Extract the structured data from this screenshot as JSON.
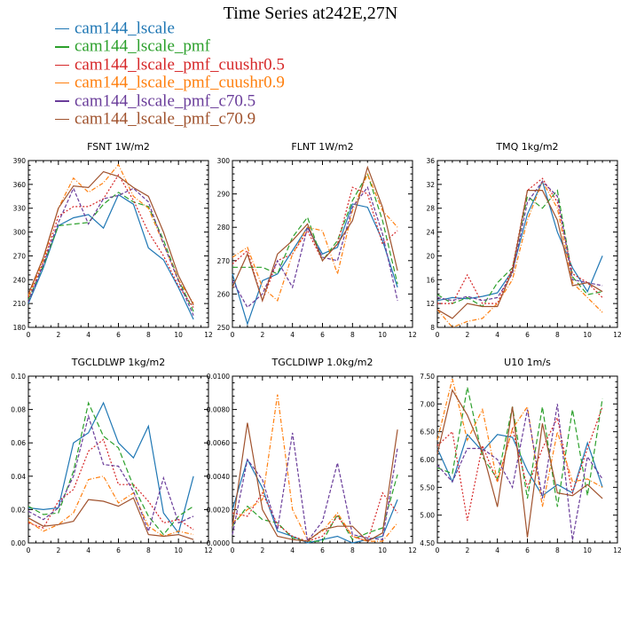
{
  "page": {
    "title": "Time Series at242E,27N"
  },
  "legend": [
    {
      "label": "cam144_lscale",
      "color": "#1f77b4"
    },
    {
      "label": "cam144_lscale_pmf",
      "color": "#2ca02c"
    },
    {
      "label": "cam144_lscale_pmf_cuushr0.5",
      "color": "#d62728"
    },
    {
      "label": "cam144_lscale_pmf_cuushr0.9",
      "color": "#ff7f0e"
    },
    {
      "label": "cam144_lscale_pmf_c70.5",
      "color": "#6a3d9a"
    },
    {
      "label": "cam144_lscale_pmf_c70.9",
      "color": "#a0522d"
    }
  ],
  "chart_data": [
    {
      "type": "line",
      "title": "FSNT   1W/m2",
      "x": [
        0,
        1,
        2,
        3,
        4,
        5,
        6,
        7,
        8,
        9,
        10,
        11
      ],
      "xlim": [
        0,
        12
      ],
      "xticks": [
        0,
        2,
        4,
        6,
        8,
        10,
        12
      ],
      "ylim": [
        180,
        390
      ],
      "yticks": [
        "180",
        "210",
        "240",
        "270",
        "300",
        "330",
        "360",
        "390"
      ],
      "series": [
        {
          "name": "cam144_lscale",
          "values": [
            210,
            255,
            308,
            318,
            322,
            305,
            347,
            335,
            280,
            265,
            230,
            190
          ]
        },
        {
          "name": "cam144_lscale_pmf",
          "values": [
            215,
            258,
            308,
            310,
            312,
            335,
            350,
            338,
            332,
            290,
            240,
            200
          ]
        },
        {
          "name": "cam144_lscale_pmf_cuushr0.5",
          "values": [
            218,
            262,
            320,
            332,
            332,
            342,
            372,
            340,
            300,
            270,
            232,
            205
          ]
        },
        {
          "name": "cam144_lscale_pmf_cuushr0.9",
          "values": [
            220,
            265,
            330,
            368,
            350,
            362,
            385,
            345,
            330,
            285,
            240,
            210
          ]
        },
        {
          "name": "cam144_lscale_pmf_c70.5",
          "values": [
            212,
            260,
            312,
            355,
            310,
            342,
            346,
            355,
            338,
            285,
            238,
            195
          ]
        },
        {
          "name": "cam144_lscale_pmf_c70.9",
          "values": [
            222,
            268,
            330,
            358,
            356,
            376,
            370,
            356,
            345,
            300,
            245,
            208
          ]
        }
      ]
    },
    {
      "type": "line",
      "title": "FLNT   1W/m2",
      "x": [
        0,
        1,
        2,
        3,
        4,
        5,
        6,
        7,
        8,
        9,
        10,
        11
      ],
      "xlim": [
        0,
        12
      ],
      "xticks": [
        0,
        2,
        4,
        6,
        8,
        10,
        12
      ],
      "ylim": [
        250,
        300
      ],
      "yticks": [
        "250",
        "260",
        "270",
        "280",
        "290",
        "300"
      ],
      "series": [
        {
          "name": "cam144_lscale",
          "values": [
            266,
            251,
            264,
            266,
            273,
            280,
            272,
            274,
            287,
            286,
            276,
            262
          ]
        },
        {
          "name": "cam144_lscale_pmf",
          "values": [
            268,
            268,
            268,
            266,
            277,
            283,
            270,
            276,
            288,
            296,
            282,
            263
          ]
        },
        {
          "name": "cam144_lscale_pmf_cuushr0.5",
          "values": [
            269,
            273,
            258,
            270,
            272,
            279,
            270,
            275,
            292,
            290,
            275,
            279
          ]
        },
        {
          "name": "cam144_lscale_pmf_cuushr0.9",
          "values": [
            271,
            274,
            262,
            258,
            272,
            280,
            279,
            266,
            285,
            296,
            285,
            280
          ]
        },
        {
          "name": "cam144_lscale_pmf_c70.5",
          "values": [
            264,
            256,
            260,
            270,
            262,
            280,
            271,
            270,
            286,
            292,
            278,
            258
          ]
        },
        {
          "name": "cam144_lscale_pmf_c70.9",
          "values": [
            262,
            272,
            258,
            272,
            276,
            281,
            270,
            275,
            282,
            298,
            286,
            267
          ]
        }
      ]
    },
    {
      "type": "line",
      "title": "TMQ   1kg/m2",
      "x": [
        0,
        1,
        2,
        3,
        4,
        5,
        6,
        7,
        8,
        9,
        10,
        11
      ],
      "xlim": [
        0,
        12
      ],
      "xticks": [
        0,
        2,
        4,
        6,
        8,
        10,
        12
      ],
      "ylim": [
        8,
        36
      ],
      "yticks": [
        "8",
        "12",
        "16",
        "20",
        "24",
        "28",
        "32",
        "36"
      ],
      "series": [
        {
          "name": "cam144_lscale",
          "values": [
            12.5,
            13,
            12.8,
            13.2,
            13.8,
            17.5,
            27,
            32.5,
            24,
            18,
            14,
            20
          ]
        },
        {
          "name": "cam144_lscale_pmf",
          "values": [
            13.5,
            12,
            13,
            11.5,
            15.5,
            18,
            30,
            28,
            31,
            16.5,
            13.5,
            14
          ]
        },
        {
          "name": "cam144_lscale_pmf_cuushr0.5",
          "values": [
            12,
            12,
            16.8,
            12,
            12,
            18,
            31,
            33,
            29,
            17,
            15.5,
            13
          ]
        },
        {
          "name": "cam144_lscale_pmf_cuushr0.9",
          "values": [
            11,
            8,
            9,
            9.5,
            12,
            16,
            26,
            32.5,
            28,
            15.5,
            13,
            10.5
          ]
        },
        {
          "name": "cam144_lscale_pmf_c70.5",
          "values": [
            13,
            12.5,
            13.2,
            12.5,
            13,
            17,
            29,
            32.5,
            30,
            16,
            15.5,
            15
          ]
        },
        {
          "name": "cam144_lscale_pmf_c70.9",
          "values": [
            11,
            9.5,
            12,
            11.5,
            11.5,
            17.5,
            31,
            31,
            26,
            15,
            15.5,
            14
          ]
        }
      ]
    },
    {
      "type": "line",
      "title": "TGCLDLWP   1kg/m2",
      "x": [
        0,
        1,
        2,
        3,
        4,
        5,
        6,
        7,
        8,
        9,
        10,
        11
      ],
      "xlim": [
        0,
        12
      ],
      "xticks": [
        0,
        2,
        4,
        6,
        8,
        10,
        12
      ],
      "ylim": [
        0,
        0.1
      ],
      "yticks": [
        "0.00",
        "0.02",
        "0.04",
        "0.06",
        "0.08",
        "0.10"
      ],
      "series": [
        {
          "name": "cam144_lscale",
          "values": [
            0.021,
            0.02,
            0.021,
            0.06,
            0.066,
            0.084,
            0.06,
            0.051,
            0.07,
            0.018,
            0.006,
            0.04
          ]
        },
        {
          "name": "cam144_lscale_pmf",
          "values": [
            0.022,
            0.017,
            0.018,
            0.043,
            0.084,
            0.064,
            0.057,
            0.034,
            0.016,
            0.005,
            0.016,
            0.022
          ]
        },
        {
          "name": "cam144_lscale_pmf_cuushr0.5",
          "values": [
            0.012,
            0.009,
            0.025,
            0.032,
            0.055,
            0.062,
            0.035,
            0.035,
            0.025,
            0.012,
            0.014,
            0.008
          ]
        },
        {
          "name": "cam144_lscale_pmf_cuushr0.9",
          "values": [
            0.013,
            0.007,
            0.011,
            0.018,
            0.038,
            0.04,
            0.024,
            0.03,
            0.01,
            0.004,
            0.007,
            0.005
          ]
        },
        {
          "name": "cam144_lscale_pmf_c70.5",
          "values": [
            0.019,
            0.014,
            0.021,
            0.04,
            0.076,
            0.047,
            0.046,
            0.031,
            0.007,
            0.039,
            0.012,
            0.016
          ]
        },
        {
          "name": "cam144_lscale_pmf_c70.9",
          "values": [
            0.015,
            0.01,
            0.011,
            0.013,
            0.026,
            0.025,
            0.022,
            0.027,
            0.005,
            0.004,
            0.005,
            0.002
          ]
        }
      ]
    },
    {
      "type": "line",
      "title": "TGCLDIWP   1.0kg/m2",
      "x": [
        0,
        1,
        2,
        3,
        4,
        5,
        6,
        7,
        8,
        9,
        10,
        11
      ],
      "xlim": [
        0,
        12
      ],
      "xticks": [
        0,
        2,
        4,
        6,
        8,
        10,
        12
      ],
      "ylim": [
        0,
        0.01
      ],
      "yticks": [
        "0.0000",
        "0.0020",
        "0.0040",
        "0.0060",
        "0.0080",
        "0.0100"
      ],
      "series": [
        {
          "name": "cam144_lscale",
          "values": [
            0.002,
            0.005,
            0.0033,
            0.0007,
            0.0004,
            0.0,
            0.0002,
            0.0004,
            0.0,
            0.0002,
            0.0004,
            0.0026
          ]
        },
        {
          "name": "cam144_lscale_pmf",
          "values": [
            0.001,
            0.0022,
            0.0014,
            0.0012,
            0.0003,
            0.0001,
            0.0001,
            0.0017,
            0.0002,
            0.0006,
            0.0009,
            0.0041
          ]
        },
        {
          "name": "cam144_lscale_pmf_cuushr0.5",
          "values": [
            0.0018,
            0.0016,
            0.003,
            0.0011,
            0.0004,
            0.0001,
            0.0004,
            0.0016,
            0.0004,
            0.0001,
            0.003,
            0.0018
          ]
        },
        {
          "name": "cam144_lscale_pmf_cuushr0.9",
          "values": [
            0.0012,
            0.002,
            0.0026,
            0.0089,
            0.002,
            0.0002,
            0.0007,
            0.0018,
            0.0004,
            0.0001,
            0.0001,
            0.0012
          ]
        },
        {
          "name": "cam144_lscale_pmf_c70.5",
          "values": [
            0.0005,
            0.005,
            0.0038,
            0.0008,
            0.0066,
            0.0001,
            0.0013,
            0.0048,
            0.0005,
            0.0003,
            0.0002,
            0.0057
          ]
        },
        {
          "name": "cam144_lscale_pmf_c70.9",
          "values": [
            0.001,
            0.0072,
            0.002,
            0.0004,
            0.0002,
            0.0001,
            0.0008,
            0.001,
            0.001,
            0.0001,
            0.0006,
            0.0068
          ]
        }
      ]
    },
    {
      "type": "line",
      "title": "U10   1m/s",
      "x": [
        0,
        1,
        2,
        3,
        4,
        5,
        6,
        7,
        8,
        9,
        10,
        11
      ],
      "xlim": [
        0,
        12
      ],
      "xticks": [
        0,
        2,
        4,
        6,
        8,
        10,
        12
      ],
      "ylim": [
        4.5,
        7.5
      ],
      "yticks": [
        "4.50",
        "5.00",
        "5.50",
        "6.00",
        "6.50",
        "7.00",
        "7.50"
      ],
      "series": [
        {
          "name": "cam144_lscale",
          "values": [
            6.2,
            5.6,
            6.45,
            6.15,
            6.45,
            6.4,
            5.8,
            5.35,
            5.55,
            5.4,
            6.3,
            5.5
          ]
        },
        {
          "name": "cam144_lscale_pmf",
          "values": [
            5.85,
            5.75,
            7.3,
            6.05,
            5.65,
            6.95,
            5.3,
            6.95,
            5.15,
            6.9,
            5.35,
            7.1
          ]
        },
        {
          "name": "cam144_lscale_pmf_cuushr0.5",
          "values": [
            6.25,
            6.5,
            4.9,
            6.25,
            5.6,
            6.55,
            5.5,
            6.2,
            6.75,
            5.4,
            6.2,
            6.95
          ]
        },
        {
          "name": "cam144_lscale_pmf_cuushr0.9",
          "values": [
            6.35,
            7.45,
            6.35,
            6.9,
            5.6,
            6.55,
            6.95,
            5.15,
            6.5,
            5.6,
            5.65,
            5.5
          ]
        },
        {
          "name": "cam144_lscale_pmf_c70.5",
          "values": [
            5.9,
            5.6,
            6.2,
            6.2,
            6.0,
            5.5,
            6.9,
            5.3,
            7.0,
            4.55,
            6.05,
            5.65
          ]
        },
        {
          "name": "cam144_lscale_pmf_c70.9",
          "values": [
            6.1,
            7.25,
            6.8,
            6.15,
            5.15,
            6.95,
            4.6,
            6.65,
            5.4,
            5.35,
            5.55,
            5.3
          ]
        }
      ]
    }
  ]
}
